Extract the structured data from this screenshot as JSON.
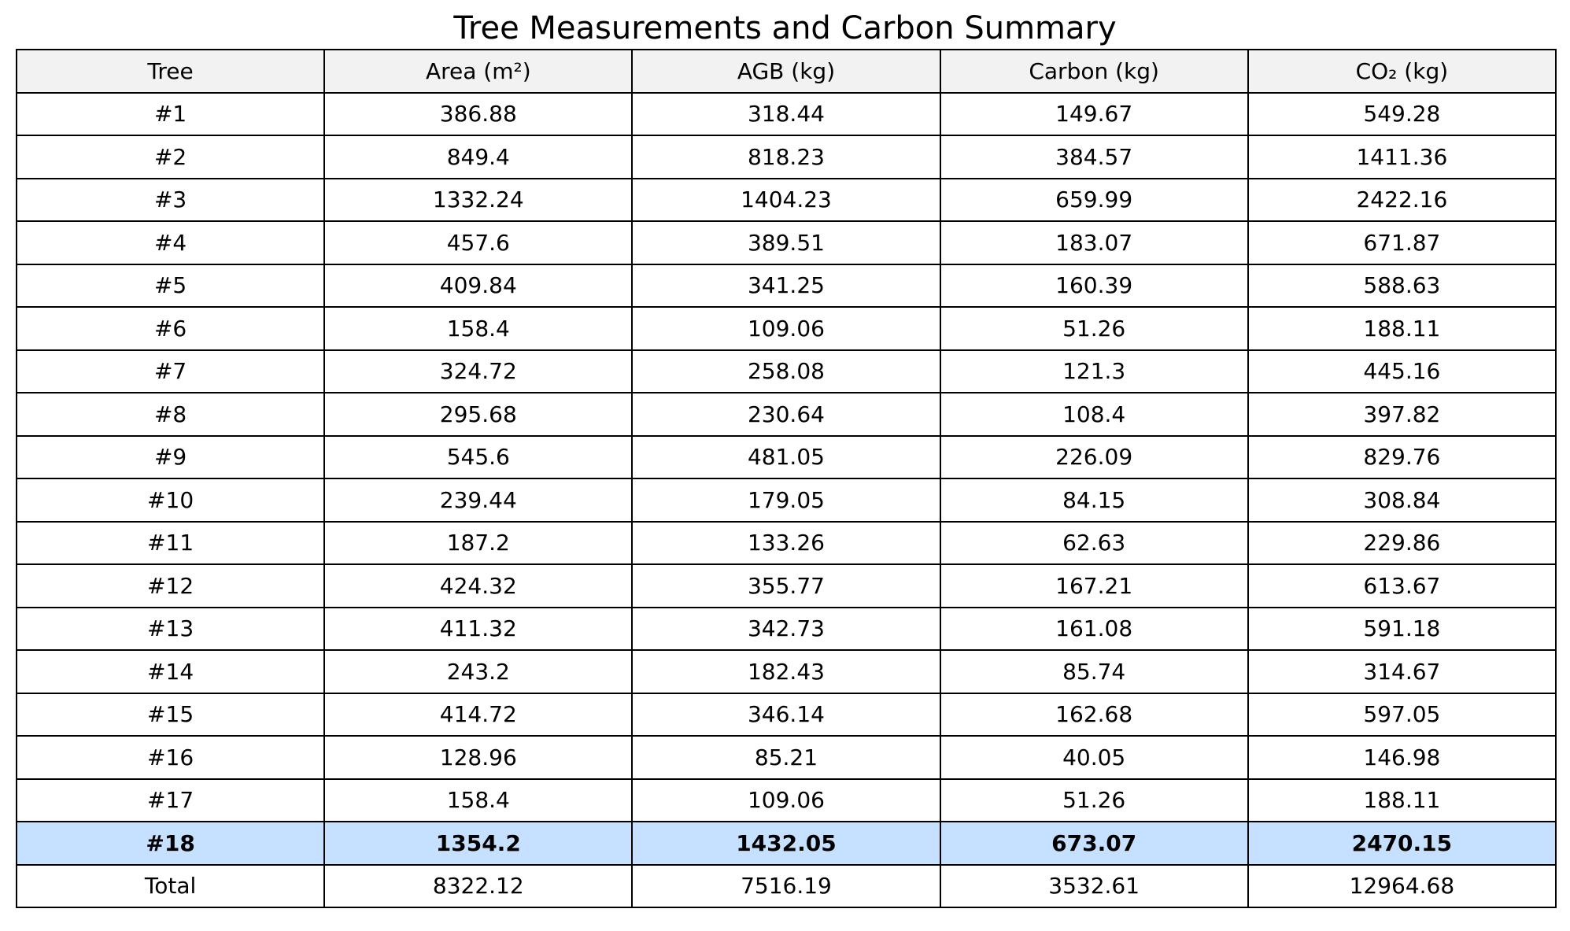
{
  "chart_data": {
    "type": "table",
    "title": "Tree Measurements and Carbon Summary",
    "columns": [
      "Tree",
      "Area (m²)",
      "AGB (kg)",
      "Carbon (kg)",
      "CO₂ (kg)"
    ],
    "rows": [
      [
        "#1",
        "386.88",
        "318.44",
        "149.67",
        "549.28"
      ],
      [
        "#2",
        "849.4",
        "818.23",
        "384.57",
        "1411.36"
      ],
      [
        "#3",
        "1332.24",
        "1404.23",
        "659.99",
        "2422.16"
      ],
      [
        "#4",
        "457.6",
        "389.51",
        "183.07",
        "671.87"
      ],
      [
        "#5",
        "409.84",
        "341.25",
        "160.39",
        "588.63"
      ],
      [
        "#6",
        "158.4",
        "109.06",
        "51.26",
        "188.11"
      ],
      [
        "#7",
        "324.72",
        "258.08",
        "121.3",
        "445.16"
      ],
      [
        "#8",
        "295.68",
        "230.64",
        "108.4",
        "397.82"
      ],
      [
        "#9",
        "545.6",
        "481.05",
        "226.09",
        "829.76"
      ],
      [
        "#10",
        "239.44",
        "179.05",
        "84.15",
        "308.84"
      ],
      [
        "#11",
        "187.2",
        "133.26",
        "62.63",
        "229.86"
      ],
      [
        "#12",
        "424.32",
        "355.77",
        "167.21",
        "613.67"
      ],
      [
        "#13",
        "411.32",
        "342.73",
        "161.08",
        "591.18"
      ],
      [
        "#14",
        "243.2",
        "182.43",
        "85.74",
        "314.67"
      ],
      [
        "#15",
        "414.72",
        "346.14",
        "162.68",
        "597.05"
      ],
      [
        "#16",
        "128.96",
        "85.21",
        "40.05",
        "146.98"
      ],
      [
        "#17",
        "158.4",
        "109.06",
        "51.26",
        "188.11"
      ],
      [
        "#18",
        "1354.2",
        "1432.05",
        "673.07",
        "2470.15"
      ],
      [
        "Total",
        "8322.12",
        "7516.19",
        "3532.61",
        "12964.68"
      ]
    ],
    "highlight_row": "#18",
    "colors": {
      "header_background": "#f2f2f2",
      "highlight_background": "#c6e0ff",
      "border": "#000000"
    }
  }
}
